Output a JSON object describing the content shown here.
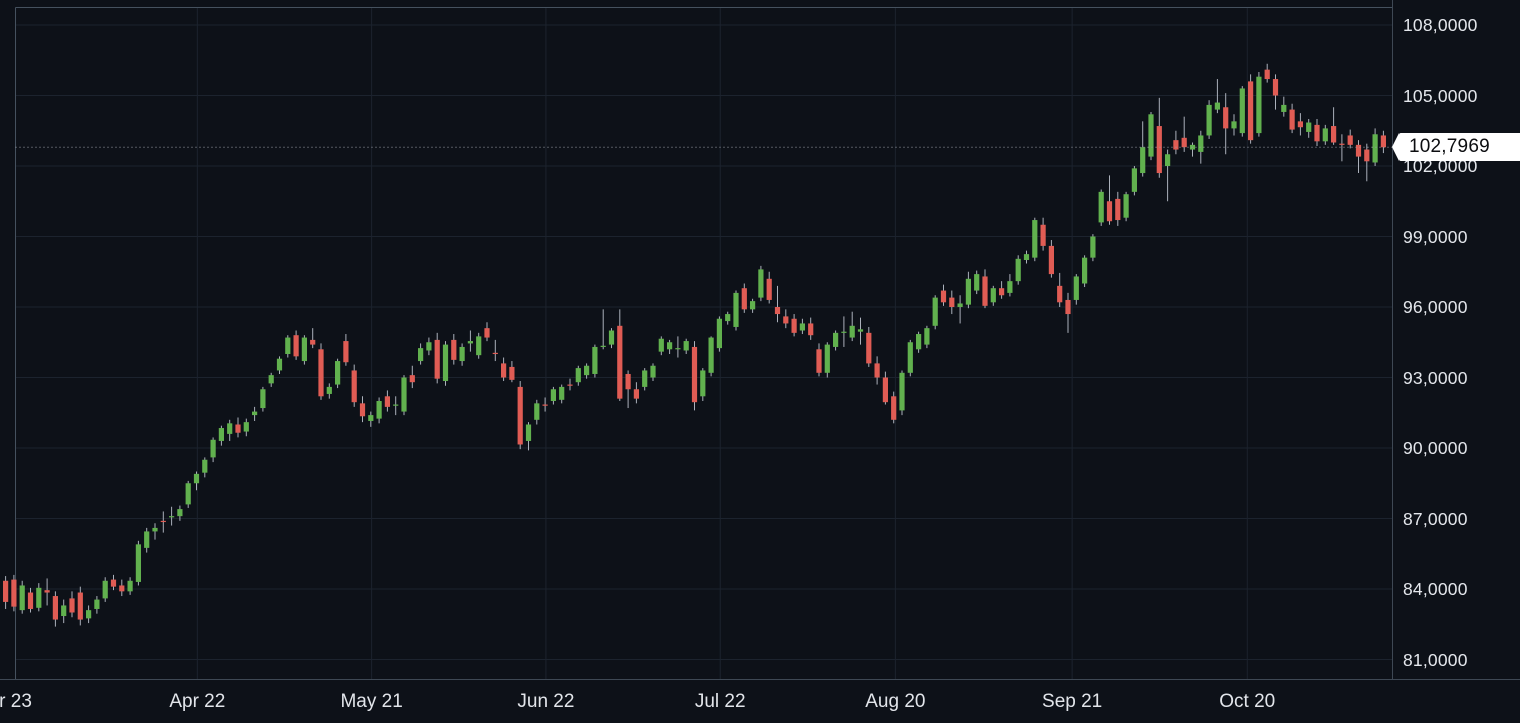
{
  "chart_data": {
    "type": "candlestick",
    "decimal_separator": ",",
    "grid": true,
    "price_axis": {
      "side": "right",
      "ticks": [
        {
          "label": "108,0000",
          "value": 108
        },
        {
          "label": "105,0000",
          "value": 105
        },
        {
          "label": "102,0000",
          "value": 102
        },
        {
          "label": "99,0000",
          "value": 99
        },
        {
          "label": "96,0000",
          "value": 96
        },
        {
          "label": "93,0000",
          "value": 93
        },
        {
          "label": "90,0000",
          "value": 90
        },
        {
          "label": "87,0000",
          "value": 87
        },
        {
          "label": "84,0000",
          "value": 84
        },
        {
          "label": "81,0000",
          "value": 81
        }
      ]
    },
    "time_axis": {
      "ticks": [
        {
          "label": "r 23",
          "index": 1.2
        },
        {
          "label": "Apr 22",
          "index": 23.1
        },
        {
          "label": "May 21",
          "index": 44.1
        },
        {
          "label": "Jun 22",
          "index": 65.1
        },
        {
          "label": "Jul 22",
          "index": 86.1
        },
        {
          "label": "Aug 20",
          "index": 107.2
        },
        {
          "label": "Sep 21",
          "index": 128.5
        },
        {
          "label": "Oct 20",
          "index": 149.6
        }
      ]
    },
    "last_price": {
      "label": "102,7969",
      "value": 102.7969
    },
    "colors": {
      "up": "#61b14e",
      "down": "#e05c54",
      "wick": "#abb1bb",
      "grid": "#1c232e",
      "pane_border": "#45515e",
      "background": "#0d1118",
      "axis_text": "#e4e7ec",
      "price_line": "#9b9fa8",
      "price_label_bg": "#ffffff",
      "price_label_text": "#0c0d10"
    },
    "candles": [
      [
        84.35,
        84.55,
        83.15,
        83.45
      ],
      [
        84.4,
        84.6,
        83.05,
        83.25
      ],
      [
        83.1,
        84.35,
        82.95,
        84.15
      ],
      [
        83.85,
        84.05,
        83.0,
        83.15
      ],
      [
        83.2,
        84.25,
        83.05,
        84.05
      ],
      [
        83.95,
        84.45,
        83.3,
        83.85
      ],
      [
        83.7,
        83.9,
        82.4,
        82.7
      ],
      [
        82.85,
        83.55,
        82.55,
        83.3
      ],
      [
        83.6,
        83.9,
        82.8,
        83.0
      ],
      [
        83.85,
        84.1,
        82.45,
        82.7
      ],
      [
        82.75,
        83.3,
        82.55,
        83.1
      ],
      [
        83.15,
        83.7,
        82.95,
        83.55
      ],
      [
        83.6,
        84.5,
        83.45,
        84.35
      ],
      [
        84.4,
        84.6,
        83.95,
        84.1
      ],
      [
        84.15,
        84.4,
        83.7,
        83.9
      ],
      [
        83.9,
        84.5,
        83.75,
        84.35
      ],
      [
        84.3,
        86.05,
        84.15,
        85.9
      ],
      [
        85.75,
        86.6,
        85.55,
        86.45
      ],
      [
        86.45,
        86.8,
        86.1,
        86.6
      ],
      [
        86.9,
        87.3,
        86.4,
        86.85
      ],
      [
        87.05,
        87.5,
        86.7,
        87.1
      ],
      [
        87.1,
        87.55,
        86.9,
        87.4
      ],
      [
        87.6,
        88.6,
        87.45,
        88.5
      ],
      [
        88.5,
        89.0,
        88.2,
        88.9
      ],
      [
        88.95,
        89.6,
        88.75,
        89.5
      ],
      [
        89.6,
        90.45,
        89.4,
        90.35
      ],
      [
        90.3,
        90.95,
        90.1,
        90.85
      ],
      [
        90.6,
        91.2,
        90.3,
        91.05
      ],
      [
        91.0,
        91.3,
        90.45,
        90.65
      ],
      [
        90.7,
        91.25,
        90.5,
        91.1
      ],
      [
        91.4,
        91.75,
        91.15,
        91.55
      ],
      [
        91.7,
        92.6,
        91.55,
        92.5
      ],
      [
        92.75,
        93.2,
        92.6,
        93.1
      ],
      [
        93.3,
        93.9,
        93.15,
        93.8
      ],
      [
        94.0,
        94.8,
        93.85,
        94.7
      ],
      [
        94.8,
        95.0,
        93.75,
        93.9
      ],
      [
        93.7,
        94.8,
        93.55,
        94.7
      ],
      [
        94.6,
        95.1,
        94.25,
        94.4
      ],
      [
        94.2,
        94.45,
        92.05,
        92.2
      ],
      [
        92.3,
        92.75,
        92.1,
        92.6
      ],
      [
        92.7,
        93.8,
        92.55,
        93.7
      ],
      [
        94.55,
        94.85,
        93.5,
        93.65
      ],
      [
        93.3,
        93.55,
        91.75,
        91.95
      ],
      [
        91.9,
        92.2,
        91.1,
        91.35
      ],
      [
        91.15,
        91.55,
        90.9,
        91.4
      ],
      [
        91.25,
        92.15,
        91.05,
        92.0
      ],
      [
        92.2,
        92.45,
        91.55,
        91.75
      ],
      [
        91.8,
        92.2,
        91.4,
        91.85
      ],
      [
        91.55,
        93.1,
        91.4,
        93.0
      ],
      [
        93.1,
        93.5,
        92.55,
        92.8
      ],
      [
        93.7,
        94.45,
        93.55,
        94.25
      ],
      [
        94.15,
        94.7,
        93.95,
        94.5
      ],
      [
        94.6,
        94.9,
        92.75,
        92.95
      ],
      [
        92.85,
        94.55,
        92.65,
        94.4
      ],
      [
        94.6,
        94.85,
        93.55,
        93.75
      ],
      [
        93.7,
        94.45,
        93.5,
        94.3
      ],
      [
        94.45,
        95.0,
        94.1,
        94.55
      ],
      [
        93.95,
        94.9,
        93.8,
        94.75
      ],
      [
        95.1,
        95.35,
        94.55,
        94.7
      ],
      [
        94.05,
        94.6,
        93.7,
        94.0
      ],
      [
        93.6,
        93.85,
        92.85,
        93.0
      ],
      [
        93.45,
        93.7,
        92.8,
        92.9
      ],
      [
        92.6,
        92.85,
        89.95,
        90.15
      ],
      [
        90.3,
        91.1,
        89.9,
        91.0
      ],
      [
        91.2,
        92.05,
        91.0,
        91.9
      ],
      [
        91.85,
        92.15,
        91.55,
        91.8
      ],
      [
        92.0,
        92.6,
        91.85,
        92.5
      ],
      [
        92.05,
        92.7,
        91.9,
        92.6
      ],
      [
        92.7,
        92.95,
        92.45,
        92.65
      ],
      [
        92.8,
        93.5,
        92.65,
        93.4
      ],
      [
        93.1,
        93.6,
        92.95,
        93.5
      ],
      [
        93.15,
        94.4,
        93.0,
        94.3
      ],
      [
        94.3,
        95.9,
        94.2,
        94.35
      ],
      [
        94.4,
        95.1,
        94.25,
        95.0
      ],
      [
        95.2,
        95.9,
        92.0,
        92.1
      ],
      [
        93.15,
        93.3,
        91.7,
        92.5
      ],
      [
        92.5,
        92.8,
        91.9,
        92.1
      ],
      [
        92.6,
        93.4,
        92.45,
        93.3
      ],
      [
        93.0,
        93.6,
        92.85,
        93.5
      ],
      [
        94.1,
        94.75,
        93.95,
        94.65
      ],
      [
        94.2,
        94.6,
        94.0,
        94.5
      ],
      [
        94.2,
        94.75,
        93.85,
        94.25
      ],
      [
        94.15,
        94.65,
        94.0,
        94.55
      ],
      [
        94.3,
        94.55,
        91.6,
        91.95
      ],
      [
        92.2,
        93.4,
        92.0,
        93.3
      ],
      [
        93.2,
        94.75,
        93.05,
        94.7
      ],
      [
        94.25,
        95.6,
        94.1,
        95.5
      ],
      [
        95.4,
        95.8,
        95.25,
        95.7
      ],
      [
        95.15,
        96.7,
        95.0,
        96.6
      ],
      [
        96.8,
        97.0,
        95.75,
        95.9
      ],
      [
        95.9,
        96.35,
        95.75,
        96.25
      ],
      [
        96.4,
        97.75,
        96.25,
        97.6
      ],
      [
        97.2,
        97.5,
        96.15,
        96.3
      ],
      [
        96.0,
        96.9,
        95.35,
        95.7
      ],
      [
        95.6,
        95.9,
        95.1,
        95.3
      ],
      [
        95.5,
        95.7,
        94.75,
        94.9
      ],
      [
        95.0,
        95.5,
        94.85,
        95.3
      ],
      [
        95.3,
        95.55,
        94.6,
        94.8
      ],
      [
        94.2,
        94.45,
        93.05,
        93.2
      ],
      [
        93.2,
        94.5,
        93.0,
        94.4
      ],
      [
        94.3,
        95.0,
        94.15,
        94.9
      ],
      [
        94.9,
        95.6,
        94.3,
        94.95
      ],
      [
        94.7,
        95.8,
        94.55,
        95.2
      ],
      [
        94.95,
        95.55,
        94.4,
        95.05
      ],
      [
        94.9,
        95.15,
        93.45,
        93.6
      ],
      [
        93.6,
        93.9,
        92.7,
        93.0
      ],
      [
        93.0,
        93.25,
        91.85,
        91.95
      ],
      [
        92.2,
        92.4,
        91.05,
        91.2
      ],
      [
        91.6,
        93.3,
        91.4,
        93.2
      ],
      [
        93.2,
        94.6,
        93.05,
        94.5
      ],
      [
        94.2,
        94.95,
        94.05,
        94.85
      ],
      [
        94.4,
        95.2,
        94.25,
        95.1
      ],
      [
        95.2,
        96.5,
        95.05,
        96.4
      ],
      [
        96.7,
        96.95,
        96.05,
        96.2
      ],
      [
        96.4,
        96.7,
        95.7,
        96.0
      ],
      [
        96.0,
        96.5,
        95.3,
        96.15
      ],
      [
        96.1,
        97.5,
        95.95,
        97.2
      ],
      [
        96.7,
        97.55,
        96.55,
        97.4
      ],
      [
        97.3,
        97.6,
        95.95,
        96.05
      ],
      [
        96.2,
        96.9,
        96.05,
        96.8
      ],
      [
        96.8,
        97.1,
        96.35,
        96.5
      ],
      [
        96.6,
        97.4,
        96.45,
        97.1
      ],
      [
        97.1,
        98.2,
        96.95,
        98.05
      ],
      [
        98.0,
        98.4,
        97.85,
        98.25
      ],
      [
        98.1,
        99.8,
        97.95,
        99.7
      ],
      [
        99.5,
        99.8,
        98.4,
        98.6
      ],
      [
        98.6,
        98.85,
        97.25,
        97.4
      ],
      [
        96.9,
        97.45,
        96.0,
        96.2
      ],
      [
        96.3,
        96.6,
        94.9,
        95.7
      ],
      [
        96.3,
        97.4,
        96.1,
        97.3
      ],
      [
        97.0,
        98.2,
        96.85,
        98.1
      ],
      [
        98.1,
        99.1,
        97.95,
        99.0
      ],
      [
        99.6,
        101.0,
        99.45,
        100.9
      ],
      [
        100.5,
        101.6,
        99.5,
        99.65
      ],
      [
        100.6,
        100.9,
        99.45,
        99.7
      ],
      [
        99.8,
        100.9,
        99.65,
        100.8
      ],
      [
        100.9,
        102.0,
        100.75,
        101.9
      ],
      [
        101.7,
        103.9,
        101.55,
        102.8
      ],
      [
        102.4,
        104.3,
        102.25,
        104.2
      ],
      [
        103.7,
        104.9,
        101.5,
        101.7
      ],
      [
        102.0,
        102.7,
        100.5,
        102.5
      ],
      [
        103.1,
        103.5,
        102.5,
        102.7
      ],
      [
        103.2,
        104.1,
        102.6,
        102.8
      ],
      [
        102.7,
        103.0,
        102.4,
        102.9
      ],
      [
        102.6,
        103.5,
        102.1,
        103.3
      ],
      [
        103.3,
        104.8,
        103.15,
        104.6
      ],
      [
        104.4,
        105.7,
        104.25,
        104.7
      ],
      [
        104.5,
        105.1,
        102.5,
        103.6
      ],
      [
        103.6,
        104.2,
        103.3,
        103.9
      ],
      [
        103.4,
        105.4,
        103.25,
        105.3
      ],
      [
        105.6,
        105.9,
        102.95,
        103.1
      ],
      [
        103.4,
        106.0,
        103.25,
        105.8
      ],
      [
        106.1,
        106.35,
        105.55,
        105.7
      ],
      [
        105.7,
        105.9,
        104.4,
        105.0
      ],
      [
        104.3,
        104.95,
        104.1,
        104.6
      ],
      [
        104.4,
        104.65,
        103.4,
        103.55
      ],
      [
        103.9,
        104.25,
        103.3,
        103.65
      ],
      [
        103.45,
        104.0,
        103.2,
        103.85
      ],
      [
        103.75,
        104.0,
        102.85,
        103.05
      ],
      [
        103.05,
        103.75,
        102.9,
        103.6
      ],
      [
        103.7,
        104.5,
        102.9,
        103.0
      ],
      [
        102.95,
        103.35,
        102.2,
        102.9
      ],
      [
        103.3,
        103.55,
        102.75,
        102.9
      ],
      [
        102.9,
        103.1,
        101.7,
        102.4
      ],
      [
        102.7,
        102.95,
        101.35,
        102.2
      ],
      [
        102.15,
        103.6,
        102.0,
        103.35
      ],
      [
        103.3,
        103.5,
        102.55,
        102.7969
      ]
    ]
  }
}
